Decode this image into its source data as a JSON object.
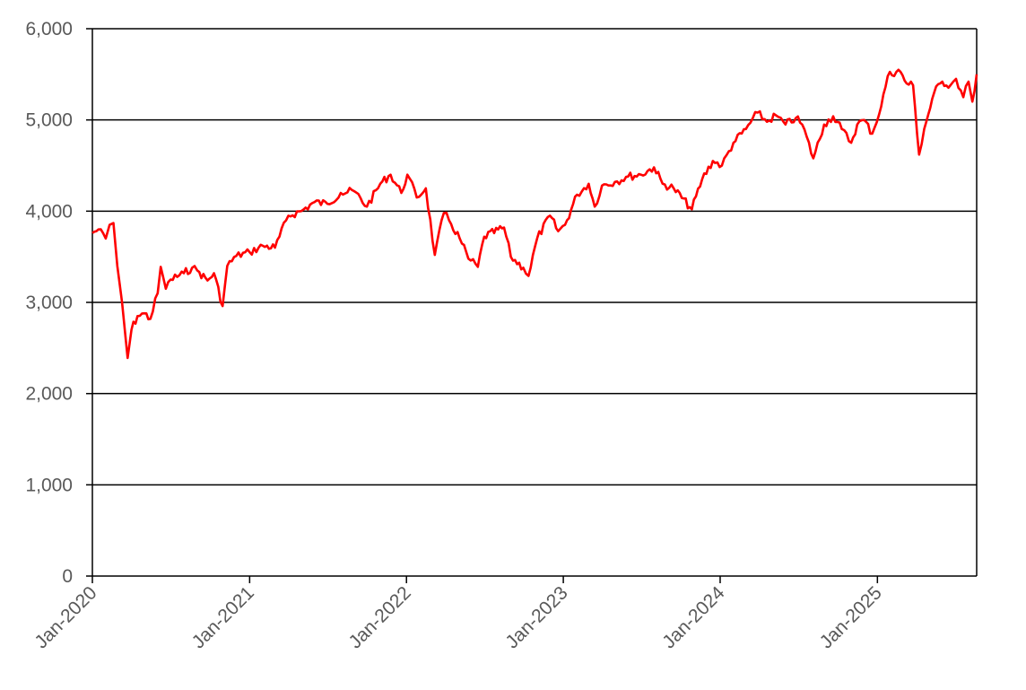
{
  "chart_data": {
    "type": "line",
    "title": "",
    "xlabel": "",
    "ylabel": "",
    "ylim": [
      0,
      6000
    ],
    "y_ticks": [
      0,
      1000,
      2000,
      3000,
      4000,
      5000,
      6000
    ],
    "y_tick_labels": [
      "0",
      "1,000",
      "2,000",
      "3,000",
      "4,000",
      "5,000",
      "6,000"
    ],
    "x_range": [
      "2020-01-01",
      "2025-08-20"
    ],
    "x_ticks": [
      "2020-01-01",
      "2021-01-01",
      "2022-01-01",
      "2023-01-01",
      "2024-01-01",
      "2025-01-01"
    ],
    "x_tick_labels": [
      "Jan-2020",
      "Jan-2021",
      "Jan-2022",
      "Jan-2023",
      "Jan-2024",
      "Jan-2025"
    ],
    "grid": "horizontal",
    "legend": "none",
    "series": [
      {
        "color": "#ff0000",
        "points": [
          [
            "2020-01-01",
            3760
          ],
          [
            "2020-01-15",
            3800
          ],
          [
            "2020-02-01",
            3700
          ],
          [
            "2020-02-10",
            3850
          ],
          [
            "2020-02-19",
            3870
          ],
          [
            "2020-02-28",
            3400
          ],
          [
            "2020-03-10",
            3000
          ],
          [
            "2020-03-23",
            2390
          ],
          [
            "2020-04-01",
            2700
          ],
          [
            "2020-04-15",
            2850
          ],
          [
            "2020-05-01",
            2880
          ],
          [
            "2020-05-15",
            2820
          ],
          [
            "2020-06-01",
            3100
          ],
          [
            "2020-06-08",
            3390
          ],
          [
            "2020-06-20",
            3150
          ],
          [
            "2020-07-01",
            3250
          ],
          [
            "2020-08-01",
            3320
          ],
          [
            "2020-08-20",
            3380
          ],
          [
            "2020-09-01",
            3350
          ],
          [
            "2020-09-25",
            3240
          ],
          [
            "2020-10-10",
            3320
          ],
          [
            "2020-10-30",
            2960
          ],
          [
            "2020-11-10",
            3400
          ],
          [
            "2020-12-01",
            3510
          ],
          [
            "2021-01-01",
            3550
          ],
          [
            "2021-02-01",
            3620
          ],
          [
            "2021-03-01",
            3600
          ],
          [
            "2021-04-01",
            3950
          ],
          [
            "2021-05-01",
            4000
          ],
          [
            "2021-06-01",
            4100
          ],
          [
            "2021-07-01",
            4080
          ],
          [
            "2021-08-01",
            4200
          ],
          [
            "2021-09-01",
            4220
          ],
          [
            "2021-10-01",
            4050
          ],
          [
            "2021-11-01",
            4300
          ],
          [
            "2021-11-25",
            4400
          ],
          [
            "2021-12-20",
            4200
          ],
          [
            "2022-01-03",
            4400
          ],
          [
            "2022-01-25",
            4150
          ],
          [
            "2022-02-15",
            4250
          ],
          [
            "2022-03-08",
            3520
          ],
          [
            "2022-03-29",
            3980
          ],
          [
            "2022-04-10",
            3900
          ],
          [
            "2022-05-05",
            3700
          ],
          [
            "2022-05-25",
            3480
          ],
          [
            "2022-06-16",
            3390
          ],
          [
            "2022-07-01",
            3720
          ],
          [
            "2022-08-16",
            3820
          ],
          [
            "2022-09-01",
            3500
          ],
          [
            "2022-09-30",
            3380
          ],
          [
            "2022-10-12",
            3290
          ],
          [
            "2022-11-01",
            3700
          ],
          [
            "2022-12-01",
            3950
          ],
          [
            "2022-12-20",
            3780
          ],
          [
            "2023-01-05",
            3850
          ],
          [
            "2023-02-02",
            4180
          ],
          [
            "2023-03-01",
            4300
          ],
          [
            "2023-03-15",
            4050
          ],
          [
            "2023-04-01",
            4280
          ],
          [
            "2023-05-01",
            4320
          ],
          [
            "2023-06-01",
            4380
          ],
          [
            "2023-07-01",
            4400
          ],
          [
            "2023-07-31",
            4480
          ],
          [
            "2023-08-20",
            4300
          ],
          [
            "2023-09-15",
            4250
          ],
          [
            "2023-10-27",
            4020
          ],
          [
            "2023-11-20",
            4350
          ],
          [
            "2023-12-15",
            4550
          ],
          [
            "2024-01-05",
            4500
          ],
          [
            "2024-02-01",
            4750
          ],
          [
            "2024-03-01",
            4900
          ],
          [
            "2024-03-28",
            5080
          ],
          [
            "2024-04-19",
            4980
          ],
          [
            "2024-05-10",
            5050
          ],
          [
            "2024-06-01",
            4950
          ],
          [
            "2024-06-25",
            5020
          ],
          [
            "2024-07-10",
            4950
          ],
          [
            "2024-08-05",
            4580
          ],
          [
            "2024-08-30",
            4950
          ],
          [
            "2024-09-20",
            5040
          ],
          [
            "2024-10-10",
            4900
          ],
          [
            "2024-11-01",
            4750
          ],
          [
            "2024-11-15",
            4950
          ],
          [
            "2024-12-01",
            5000
          ],
          [
            "2024-12-20",
            4850
          ],
          [
            "2025-01-10",
            5150
          ],
          [
            "2025-01-25",
            5480
          ],
          [
            "2025-02-19",
            5550
          ],
          [
            "2025-03-10",
            5400
          ],
          [
            "2025-03-25",
            5380
          ],
          [
            "2025-04-08",
            4620
          ],
          [
            "2025-04-20",
            4900
          ],
          [
            "2025-05-13",
            5300
          ],
          [
            "2025-06-01",
            5420
          ],
          [
            "2025-06-20",
            5380
          ],
          [
            "2025-07-03",
            5450
          ],
          [
            "2025-07-20",
            5250
          ],
          [
            "2025-08-01",
            5420
          ],
          [
            "2025-08-10",
            5200
          ],
          [
            "2025-08-20",
            5500
          ]
        ]
      }
    ]
  }
}
